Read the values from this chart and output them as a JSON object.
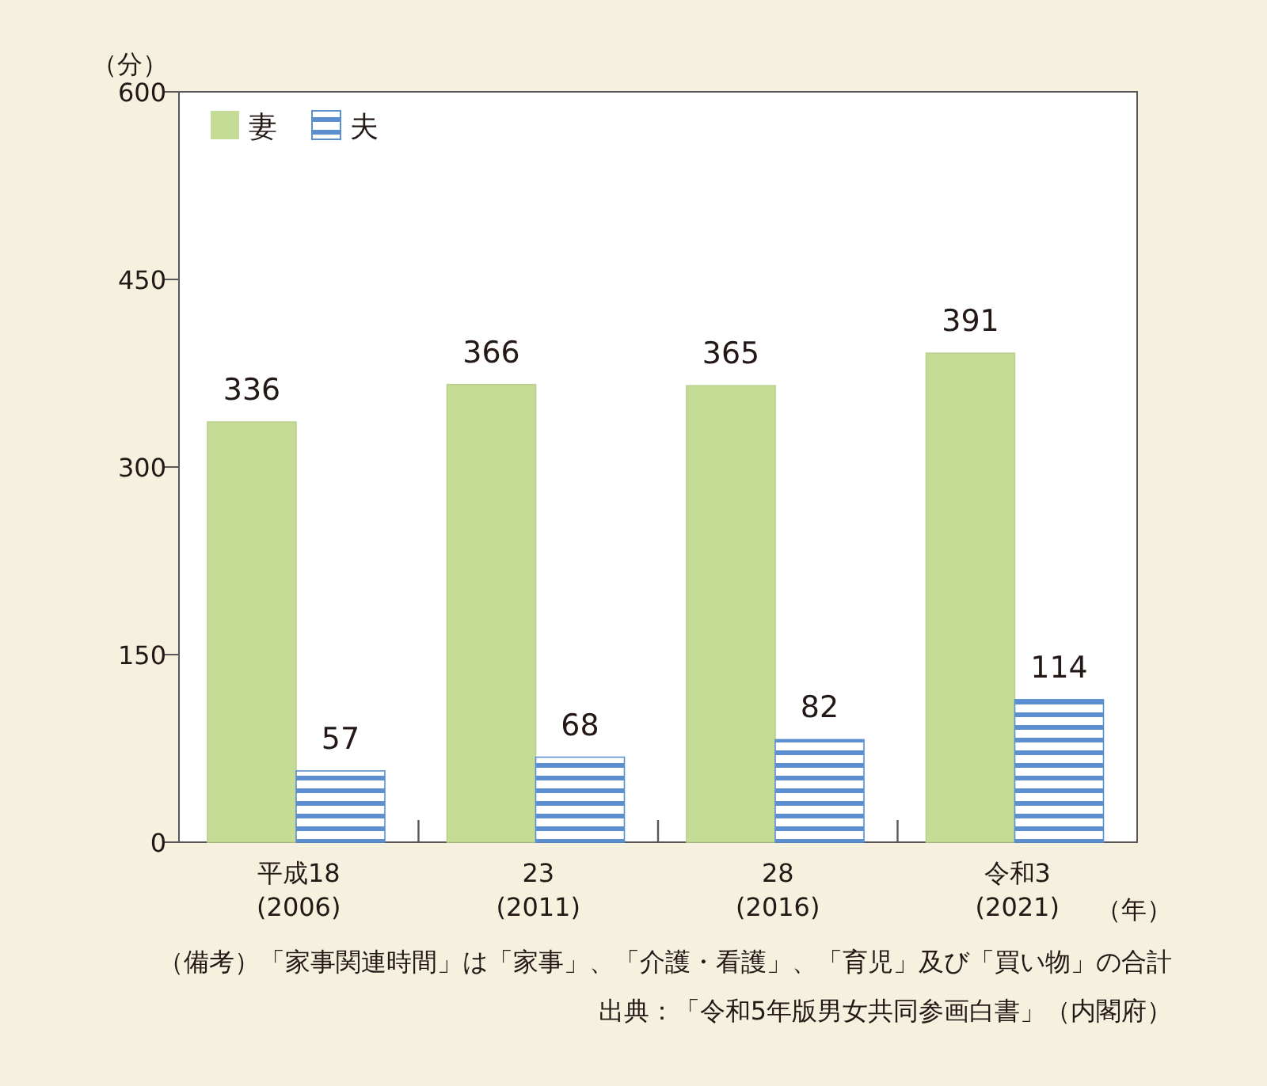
{
  "chart_data": {
    "type": "bar",
    "ylabel": "（分）",
    "xlabel": "（年）",
    "categories": [
      "平成18\n(2006)",
      "23\n(2011)",
      "28\n(2016)",
      "令和3\n(2021)"
    ],
    "series": [
      {
        "name": "妻",
        "color": "#c5dc96",
        "values": [
          336,
          366,
          365,
          391
        ]
      },
      {
        "name": "夫",
        "color": "#5b8fd0",
        "values": [
          57,
          68,
          82,
          114
        ]
      }
    ],
    "ylim": [
      0,
      600
    ],
    "yticks": [
      0,
      150,
      300,
      450,
      600
    ],
    "data_labels": true,
    "legend": "top left",
    "annotations": [
      "（備考）「家事関連時間」は「家事」、「介護・看護」、「育児」及び「買い物」の合計",
      "出典：「令和5年版男女共同参画白書」（内閣府）"
    ]
  }
}
